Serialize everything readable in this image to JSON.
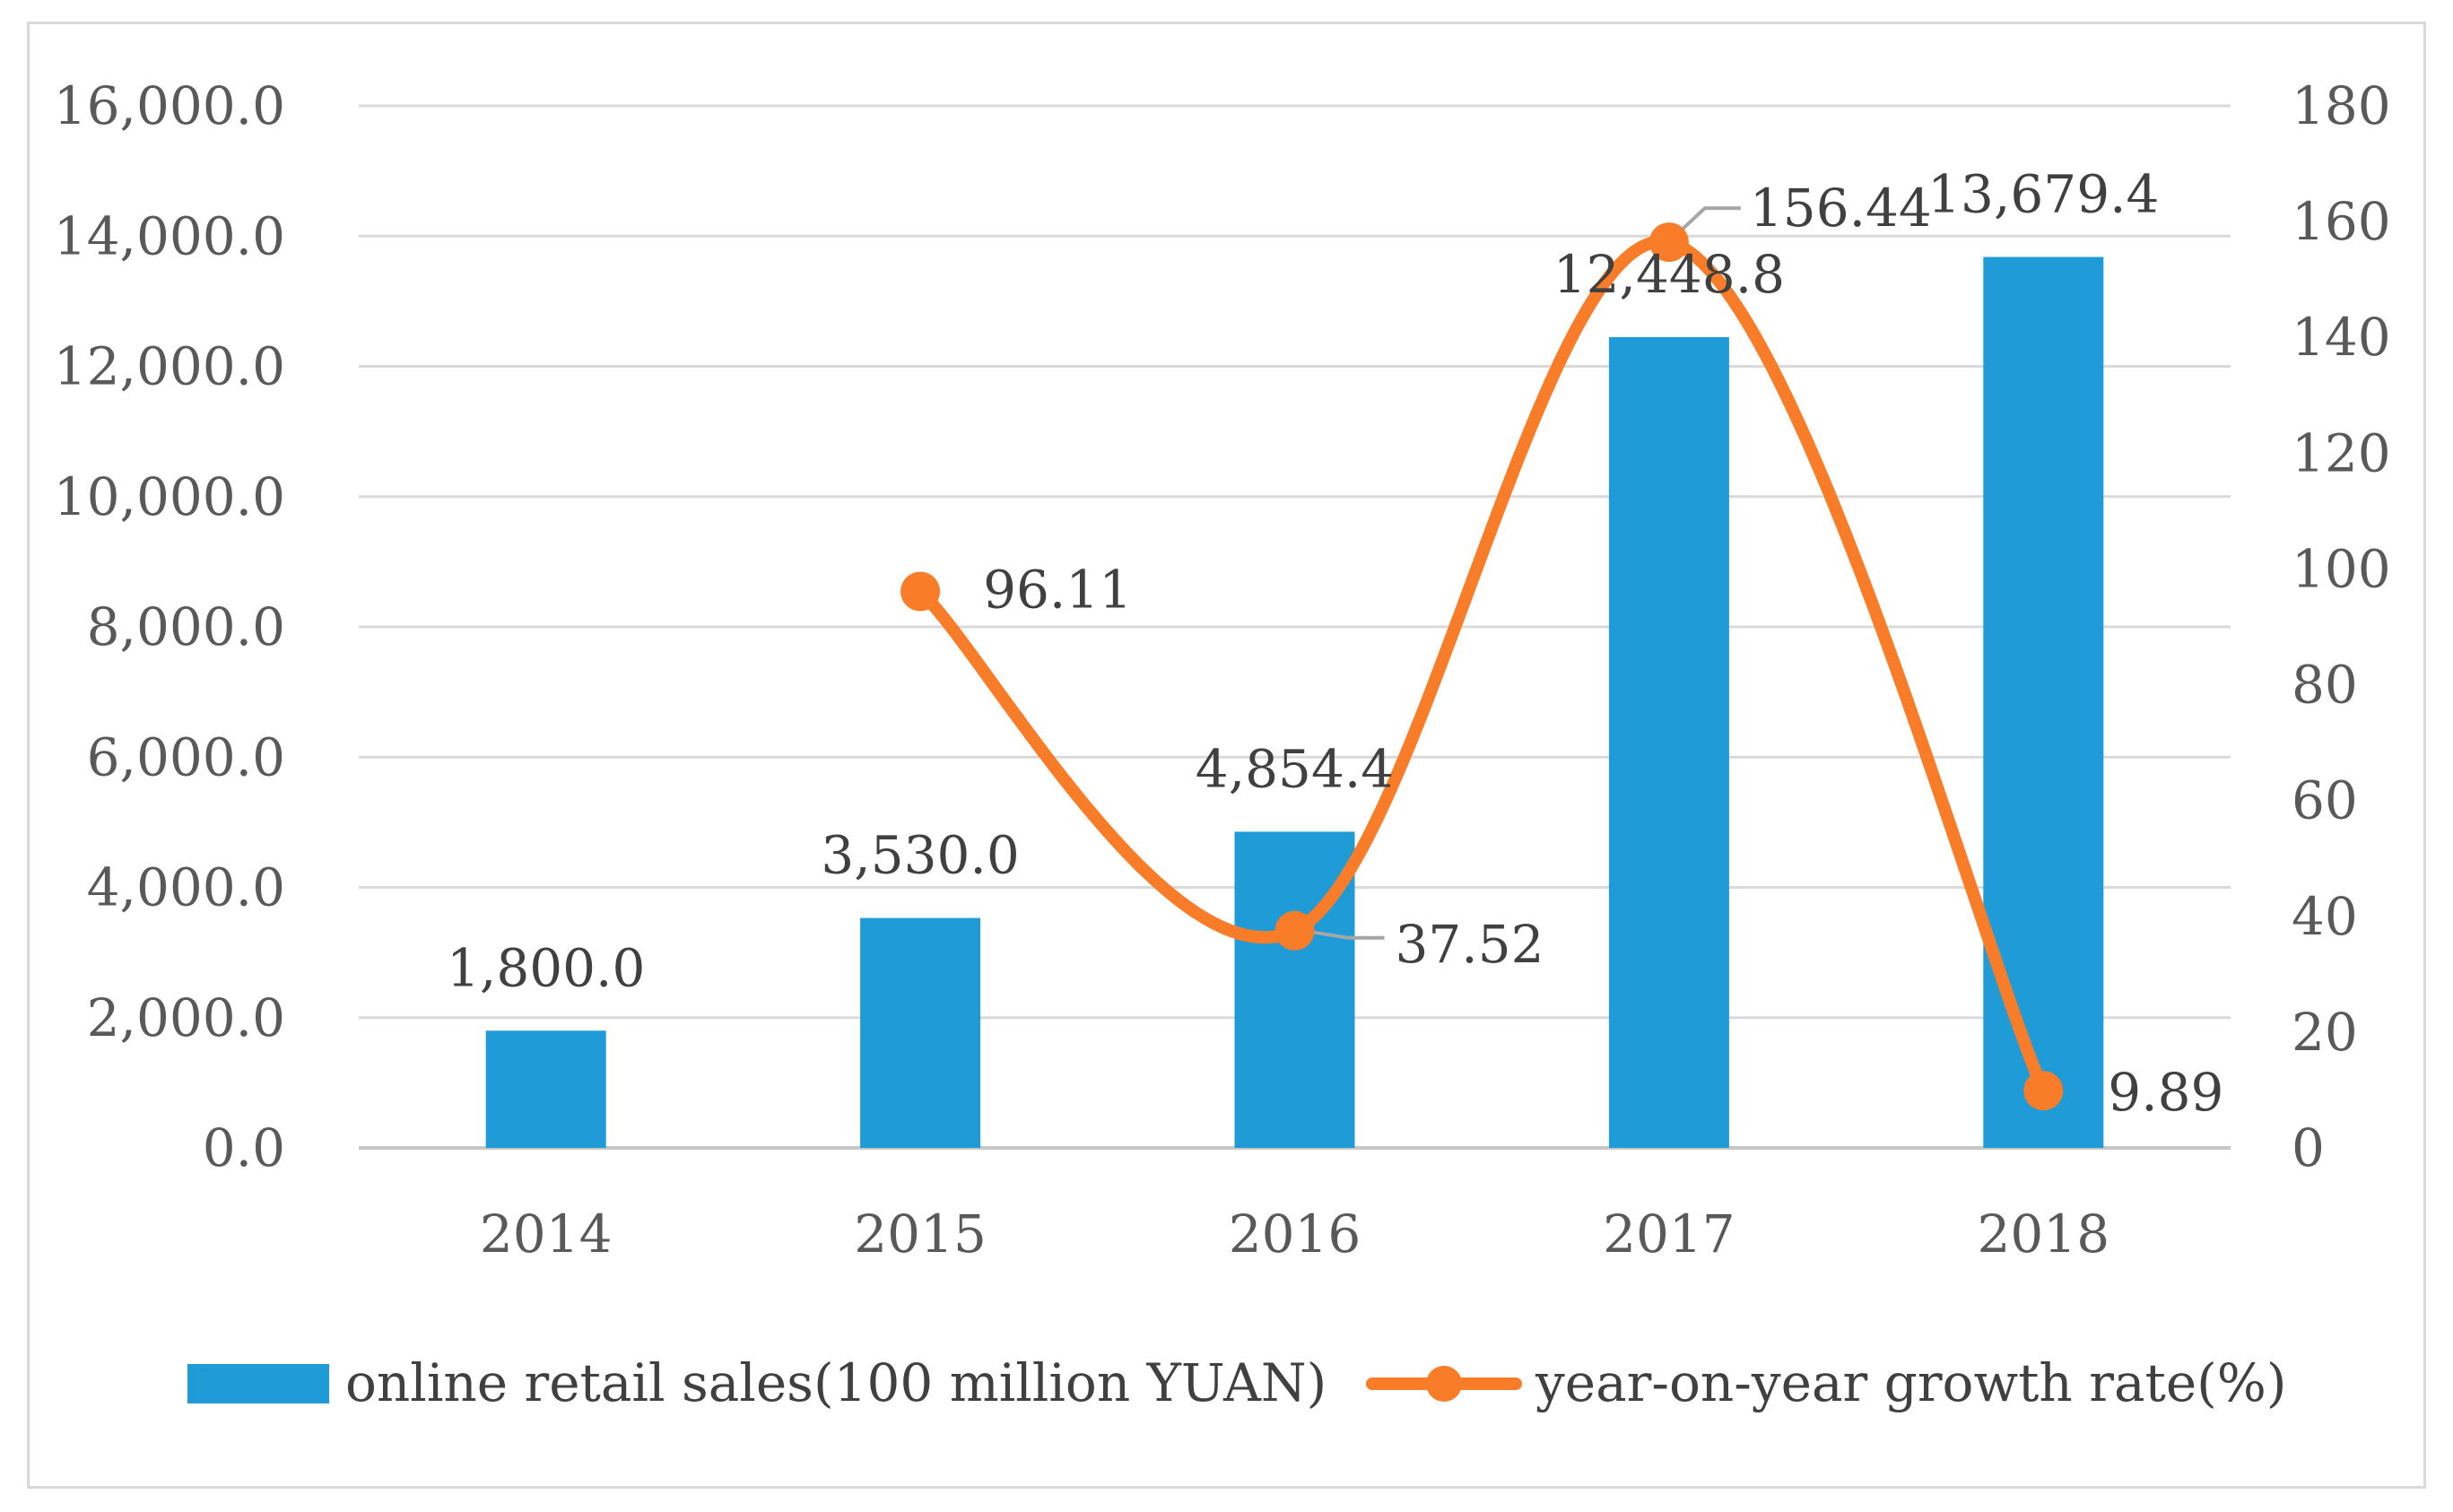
{
  "chart_data": {
    "type": "bar",
    "categories": [
      "2014",
      "2015",
      "2016",
      "2017",
      "2018"
    ],
    "series": [
      {
        "name": "online retail sales(100 million YUAN)",
        "type": "bar",
        "axis": "left",
        "color": "#1f9bd7",
        "values": [
          1800.0,
          3530.0,
          4854.4,
          12448.8,
          13679.4
        ],
        "labels": [
          "1,800.0",
          "3,530.0",
          "4,854.4",
          "12,448.8",
          "13,679.4"
        ]
      },
      {
        "name": "year-on-year growth rate(%)",
        "type": "line",
        "smooth": true,
        "axis": "right",
        "color": "#f97c28",
        "values": [
          null,
          96.11,
          37.52,
          156.44,
          9.89
        ],
        "labels": [
          "",
          "96.11",
          "37.52",
          "156.44",
          "9.89"
        ]
      }
    ],
    "y_left": {
      "min": 0,
      "max": 16000,
      "ticks": [
        0,
        2000,
        4000,
        6000,
        8000,
        10000,
        12000,
        14000,
        16000
      ],
      "tick_labels": [
        "0.0",
        "2,000.0",
        "4,000.0",
        "6,000.0",
        "8,000.0",
        "10,000.0",
        "12,000.0",
        "14,000.0",
        "16,000.0"
      ]
    },
    "y_right": {
      "min": 0,
      "max": 180,
      "ticks": [
        0,
        20,
        40,
        60,
        80,
        100,
        120,
        140,
        160,
        180
      ],
      "tick_labels": [
        "0",
        "20",
        "40",
        "60",
        "80",
        "100",
        "120",
        "140",
        "160",
        "180"
      ]
    },
    "grid": true,
    "legend": "bottom",
    "title": "",
    "xlabel": "",
    "ylabel": ""
  }
}
